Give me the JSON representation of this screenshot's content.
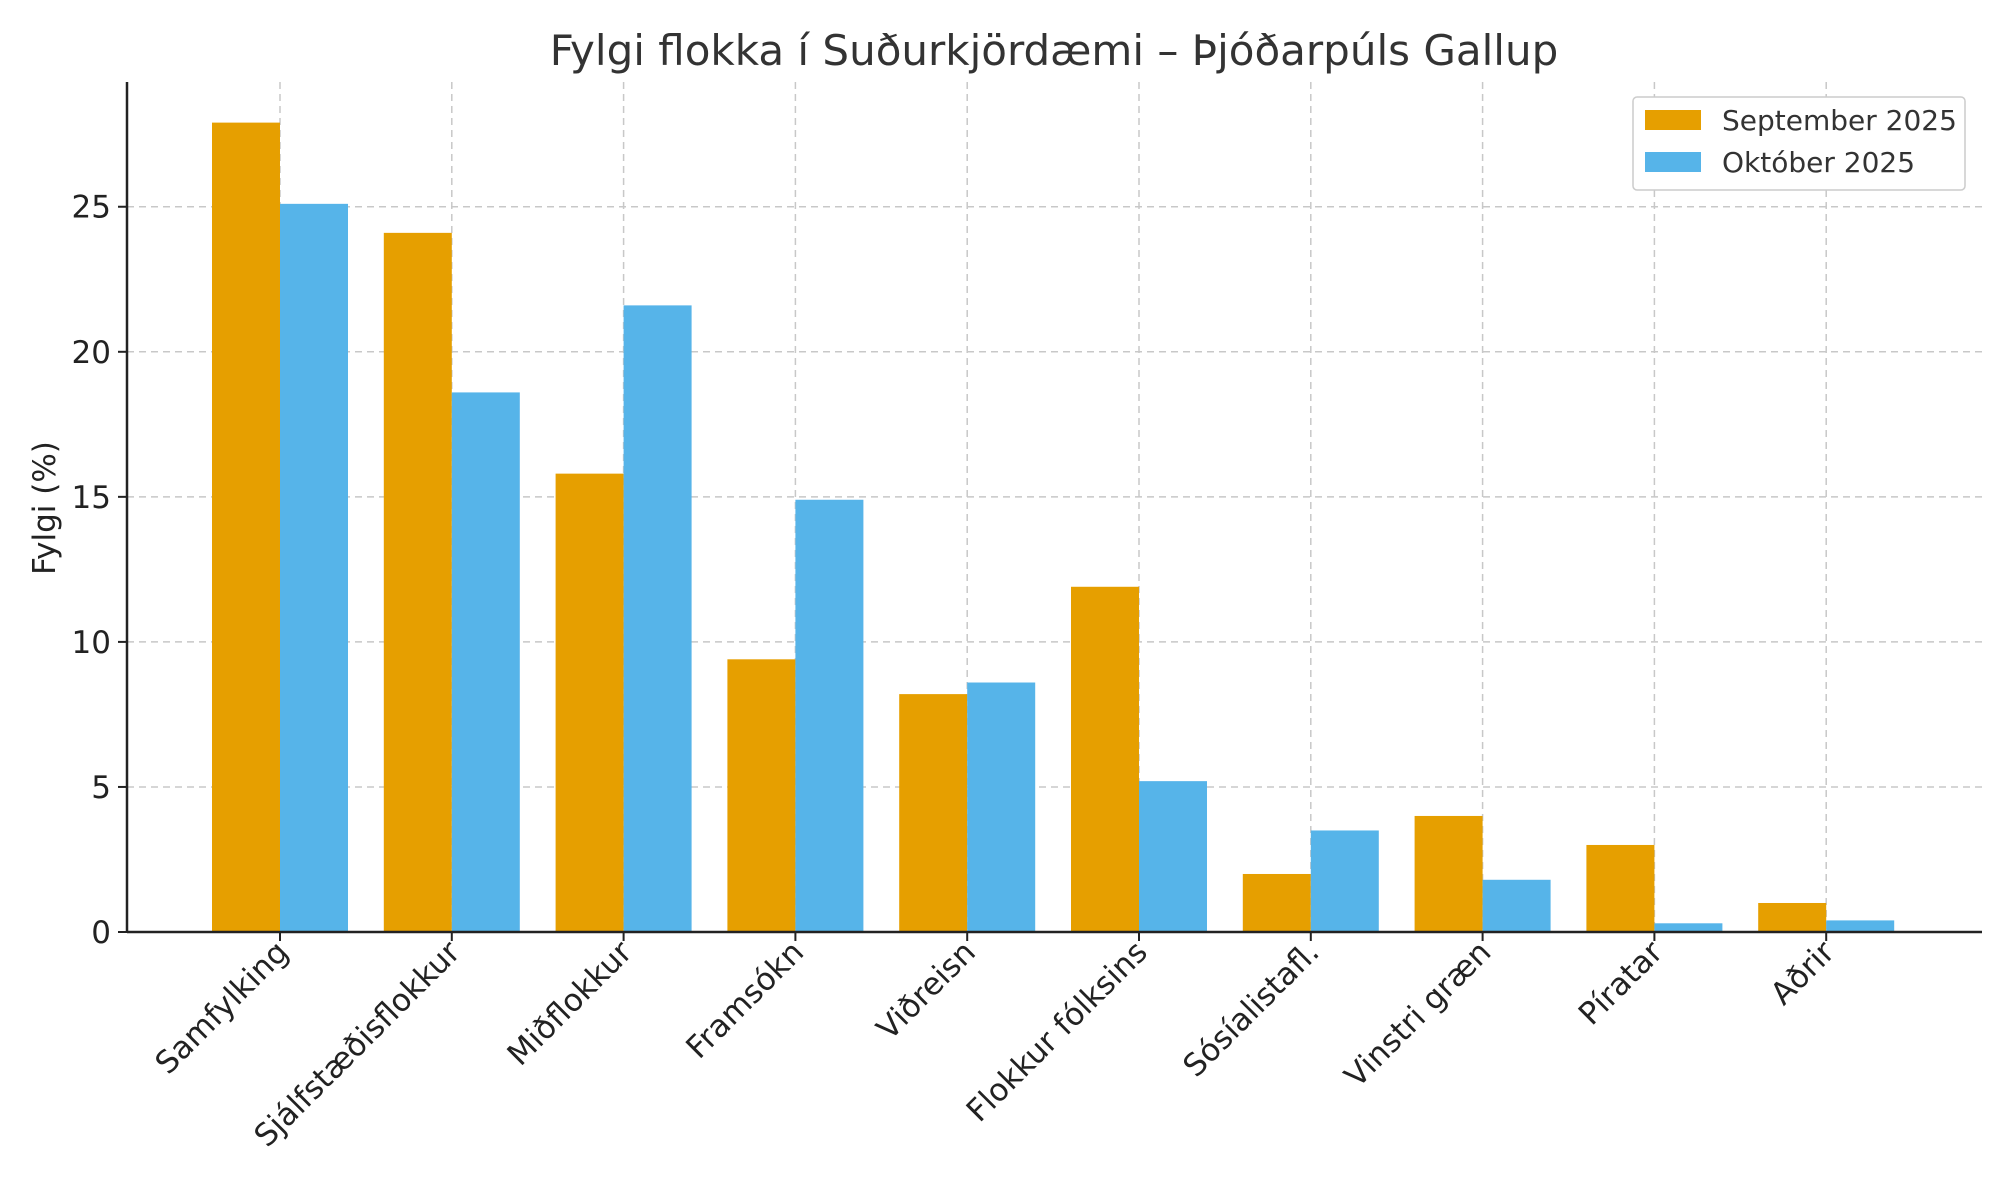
{
  "chart_data": {
    "type": "bar",
    "title": "Fylgi flokka í Suðurkjördæmi – Þjóðarpúls Gallup",
    "xlabel": "",
    "ylabel": "Fylgi (%)",
    "ylim": [
      0,
      29.3
    ],
    "yticks": [
      0,
      5,
      10,
      15,
      20,
      25
    ],
    "grid": true,
    "legend_position": "top-right",
    "categories": [
      "Samfylking",
      "Sjálfstæðisflokkur",
      "Miðflokkur",
      "Framsókn",
      "Viðreisn",
      "Flokkur fólksins",
      "Sósíalistafl.",
      "Vinstri græn",
      "Píratar",
      "Aðrir"
    ],
    "series": [
      {
        "name": "September 2025",
        "color": "#E69F00",
        "values": [
          27.9,
          24.1,
          15.8,
          9.4,
          8.2,
          11.9,
          2.0,
          4.0,
          3.0,
          1.0
        ]
      },
      {
        "name": "Október 2025",
        "color": "#56B4E9",
        "values": [
          25.1,
          18.6,
          21.6,
          14.9,
          8.6,
          5.2,
          3.5,
          1.8,
          0.3,
          0.4
        ]
      }
    ]
  }
}
